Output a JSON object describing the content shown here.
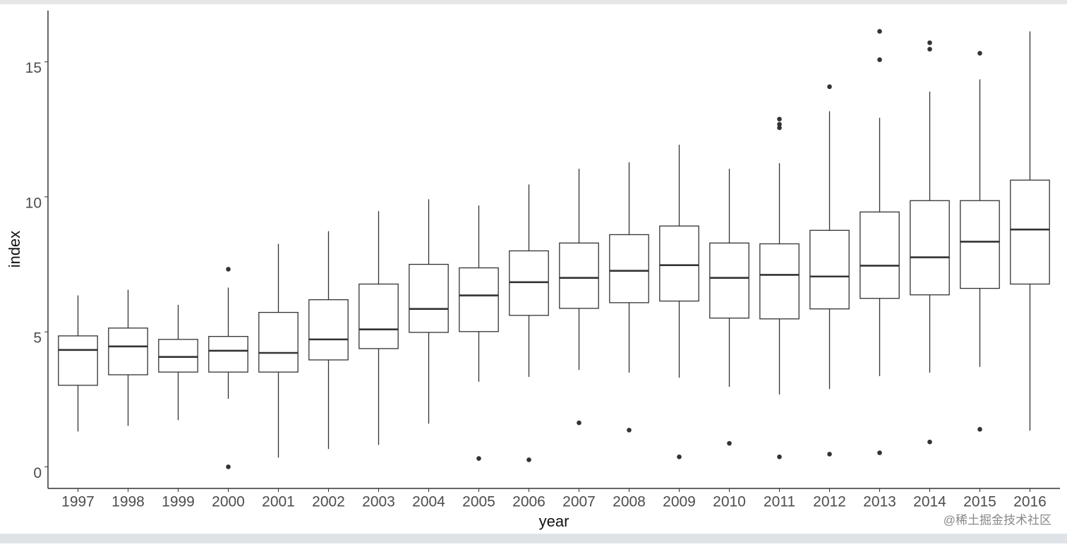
{
  "chart_data": {
    "type": "box",
    "x_label": "year",
    "y_label": "index",
    "categories": [
      "1997",
      "1998",
      "1999",
      "2000",
      "2001",
      "2002",
      "2003",
      "2004",
      "2005",
      "2006",
      "2007",
      "2008",
      "2009",
      "2010",
      "2011",
      "2012",
      "2013",
      "2014",
      "2015",
      "2016"
    ],
    "whisker_low": [
      1.31,
      1.52,
      1.73,
      2.52,
      0.34,
      0.66,
      0.81,
      1.6,
      3.15,
      3.33,
      3.59,
      3.49,
      3.3,
      2.96,
      2.68,
      2.88,
      3.36,
      3.49,
      3.7,
      1.34
    ],
    "q1": [
      3.02,
      3.41,
      3.51,
      3.51,
      3.51,
      3.96,
      4.38,
      4.98,
      5.01,
      5.61,
      5.87,
      6.08,
      6.14,
      5.51,
      5.48,
      5.85,
      6.24,
      6.37,
      6.61,
      6.77
    ],
    "median": [
      4.33,
      4.46,
      4.07,
      4.3,
      4.22,
      4.72,
      5.09,
      5.85,
      6.35,
      6.84,
      7.0,
      7.26,
      7.47,
      7.0,
      7.11,
      7.05,
      7.45,
      7.76,
      8.34,
      8.79
    ],
    "q3": [
      4.85,
      5.14,
      4.72,
      4.83,
      5.72,
      6.19,
      6.77,
      7.5,
      7.37,
      8.0,
      8.29,
      8.6,
      8.92,
      8.29,
      8.26,
      8.76,
      9.44,
      9.86,
      9.86,
      10.62
    ],
    "whisker_high": [
      6.35,
      6.56,
      6.0,
      6.64,
      8.26,
      8.73,
      9.47,
      9.91,
      9.68,
      10.46,
      11.04,
      11.28,
      11.93,
      11.04,
      11.25,
      13.17,
      12.93,
      13.9,
      14.35,
      16.13
    ],
    "outliers": [
      [],
      [],
      [],
      [
        7.32,
        0
      ],
      [],
      [],
      [],
      [],
      [
        0.31
      ],
      [
        0.26
      ],
      [
        1.63
      ],
      [
        1.36
      ],
      [
        0.37
      ],
      [
        0.87
      ],
      [
        12.88,
        12.69,
        12.56,
        0.37
      ],
      [
        14.08,
        0.47
      ],
      [
        16.13,
        15.08,
        0.52
      ],
      [
        15.71,
        15.47,
        0.92
      ],
      [
        15.32,
        1.39
      ],
      []
    ],
    "ylim": [
      -0.8,
      16.9
    ],
    "yticks": [
      0,
      5,
      10,
      15
    ],
    "box_color": "#333333",
    "fill": "#ffffff"
  },
  "watermark": "@稀土掘金技术社区"
}
